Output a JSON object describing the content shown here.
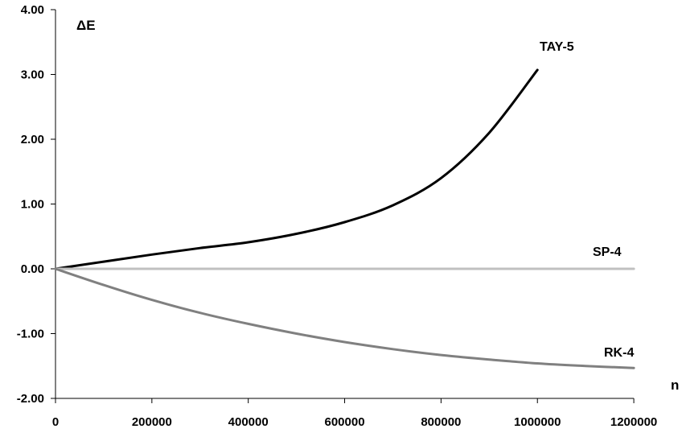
{
  "chart_data": {
    "type": "line",
    "title": "",
    "xlabel": "n",
    "ylabel": "ΔE",
    "xlim": [
      0,
      1300000
    ],
    "ylim": [
      -2.0,
      4.0
    ],
    "x_ticks": [
      0,
      200000,
      400000,
      600000,
      800000,
      1000000,
      1200000
    ],
    "x_tick_labels": [
      "0",
      "200000",
      "400000",
      "600000",
      "800000",
      "1000000",
      "1200000"
    ],
    "y_ticks": [
      -2.0,
      -1.0,
      0.0,
      1.0,
      2.0,
      3.0,
      4.0
    ],
    "y_tick_labels": [
      "-2.00",
      "-1.00",
      "0.00",
      "1.00",
      "2.00",
      "3.00",
      "4.00"
    ],
    "grid": false,
    "legend": "none",
    "series": [
      {
        "name": "TAY-5",
        "color": "#000000",
        "x": [
          0,
          100000,
          200000,
          300000,
          400000,
          500000,
          600000,
          700000,
          800000,
          900000,
          1000000
        ],
        "y": [
          0.0,
          0.11,
          0.22,
          0.32,
          0.41,
          0.54,
          0.72,
          0.98,
          1.4,
          2.1,
          3.07
        ]
      },
      {
        "name": "SP-4",
        "color": "#c0c0c0",
        "x": [
          0,
          200000,
          400000,
          600000,
          800000,
          1000000,
          1200000
        ],
        "y": [
          0.0,
          0.0,
          0.0,
          0.0,
          0.0,
          0.0,
          0.0
        ]
      },
      {
        "name": "RK-4",
        "color": "#808080",
        "x": [
          0,
          100000,
          200000,
          300000,
          400000,
          500000,
          600000,
          700000,
          800000,
          900000,
          1000000,
          1100000,
          1200000
        ],
        "y": [
          0.0,
          -0.25,
          -0.48,
          -0.68,
          -0.85,
          -1.0,
          -1.13,
          -1.24,
          -1.33,
          -1.4,
          -1.46,
          -1.5,
          -1.53
        ]
      }
    ]
  }
}
